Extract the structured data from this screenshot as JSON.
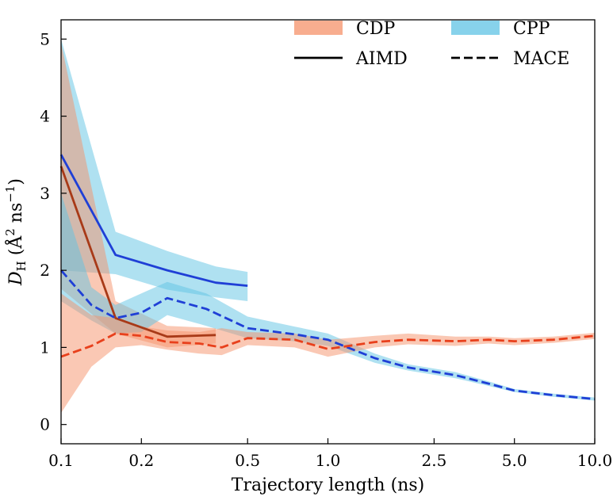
{
  "chart_data": {
    "type": "line",
    "title": "",
    "xlabel": "Trajectory length (ns)",
    "ylabel": {
      "main": "D",
      "sub": "H",
      "unit": "(Å² ns⁻¹)",
      "unit_parts": [
        "(Å",
        "2",
        " ns",
        "−1",
        ")"
      ]
    },
    "x_scale": "log",
    "xlim": [
      0.1,
      10.0
    ],
    "ylim": [
      -0.25,
      5.25
    ],
    "x_ticks": [
      {
        "value": 0.1,
        "label": "0.1"
      },
      {
        "value": 0.2,
        "label": "0.2"
      },
      {
        "value": 0.5,
        "label": "0.5"
      },
      {
        "value": 1.0,
        "label": "1.0"
      },
      {
        "value": 2.5,
        "label": "2.5"
      },
      {
        "value": 5.0,
        "label": "5.0"
      },
      {
        "value": 10.0,
        "label": "10.0"
      }
    ],
    "y_ticks": [
      {
        "value": 0,
        "label": "0"
      },
      {
        "value": 1,
        "label": "1"
      },
      {
        "value": 2,
        "label": "2"
      },
      {
        "value": 3,
        "label": "3"
      },
      {
        "value": 4,
        "label": "4"
      },
      {
        "value": 5,
        "label": "5"
      }
    ],
    "legend": {
      "position": "top-right",
      "entries": [
        {
          "label": "CDP",
          "kind": "band",
          "color": "#f5916a"
        },
        {
          "label": "CPP",
          "kind": "band",
          "color": "#5fc3e4"
        },
        {
          "label": "AIMD",
          "kind": "solid",
          "color": "#000000"
        },
        {
          "label": "MACE",
          "kind": "dashed",
          "color": "#000000"
        }
      ]
    },
    "series": [
      {
        "name": "CPP AIMD",
        "system": "CPP",
        "method": "AIMD",
        "line_color": "#1f3fd6",
        "band_color": "#5fc3e4",
        "dashed": false,
        "x": [
          0.1,
          0.16,
          0.25,
          0.38,
          0.5
        ],
        "y": [
          3.5,
          2.2,
          2.0,
          1.84,
          1.8
        ],
        "y_low": [
          2.0,
          1.95,
          1.75,
          1.65,
          1.6
        ],
        "y_high": [
          5.0,
          2.5,
          2.25,
          2.05,
          1.98
        ]
      },
      {
        "name": "CDP AIMD",
        "system": "CDP",
        "method": "AIMD",
        "line_color": "#a83a18",
        "band_color": "#f5916a",
        "dashed": false,
        "x": [
          0.1,
          0.16,
          0.25,
          0.38
        ],
        "y": [
          3.35,
          1.38,
          1.14,
          1.16
        ],
        "y_low": [
          1.76,
          1.18,
          1.0,
          1.05
        ],
        "y_high": [
          4.95,
          1.6,
          1.28,
          1.25
        ]
      },
      {
        "name": "CPP MACE",
        "system": "CPP",
        "method": "MACE",
        "line_color": "#1f3fd6",
        "band_color": "#5fc3e4",
        "dashed": true,
        "x": [
          0.1,
          0.13,
          0.16,
          0.2,
          0.25,
          0.35,
          0.5,
          0.75,
          1.0,
          1.5,
          2.0,
          3.0,
          4.0,
          5.0,
          7.0,
          10.0
        ],
        "y": [
          2.0,
          1.55,
          1.38,
          1.45,
          1.64,
          1.5,
          1.25,
          1.17,
          1.1,
          0.86,
          0.74,
          0.64,
          0.53,
          0.44,
          0.38,
          0.33
        ],
        "y_low": [
          1.6,
          1.35,
          1.18,
          1.2,
          1.42,
          1.28,
          1.12,
          1.08,
          1.02,
          0.8,
          0.7,
          0.6,
          0.5,
          0.42,
          0.36,
          0.31
        ],
        "y_high": [
          3.0,
          1.78,
          1.55,
          1.7,
          1.85,
          1.7,
          1.4,
          1.27,
          1.18,
          0.92,
          0.78,
          0.68,
          0.56,
          0.46,
          0.4,
          0.35
        ]
      },
      {
        "name": "CDP MACE",
        "system": "CDP",
        "method": "MACE",
        "line_color": "#e8401c",
        "band_color": "#f5916a",
        "dashed": true,
        "x": [
          0.1,
          0.13,
          0.16,
          0.2,
          0.25,
          0.33,
          0.4,
          0.5,
          0.75,
          1.0,
          1.5,
          2.0,
          3.0,
          4.0,
          5.0,
          7.0,
          10.0
        ],
        "y": [
          0.88,
          1.02,
          1.18,
          1.15,
          1.07,
          1.05,
          1.0,
          1.12,
          1.1,
          0.98,
          1.07,
          1.1,
          1.08,
          1.1,
          1.08,
          1.1,
          1.15
        ],
        "y_low": [
          0.15,
          0.75,
          1.0,
          1.03,
          0.97,
          0.92,
          0.9,
          1.03,
          1.0,
          0.88,
          1.0,
          1.04,
          1.02,
          1.05,
          1.03,
          1.06,
          1.11
        ],
        "y_high": [
          1.7,
          1.42,
          1.38,
          1.27,
          1.22,
          1.2,
          1.25,
          1.2,
          1.18,
          1.1,
          1.15,
          1.18,
          1.14,
          1.14,
          1.12,
          1.14,
          1.19
        ]
      }
    ]
  }
}
